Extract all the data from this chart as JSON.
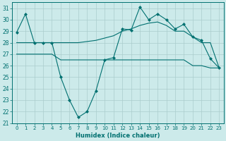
{
  "xlabel": "Humidex (Indice chaleur)",
  "bg_color": "#cceaea",
  "grid_color": "#aacccc",
  "line_color": "#007070",
  "xlim": [
    -0.5,
    23.5
  ],
  "ylim": [
    21.0,
    31.5
  ],
  "yticks": [
    21,
    22,
    23,
    24,
    25,
    26,
    27,
    28,
    29,
    30,
    31
  ],
  "xticks": [
    0,
    1,
    2,
    3,
    4,
    5,
    6,
    7,
    8,
    9,
    10,
    11,
    12,
    13,
    14,
    15,
    16,
    17,
    18,
    19,
    20,
    21,
    22,
    23
  ],
  "xtick_labels": [
    "0",
    "1",
    "2",
    "3",
    "4",
    "5",
    "6",
    "7",
    "8",
    "9",
    "10",
    "11",
    "12",
    "13",
    "14",
    "15",
    "16",
    "17",
    "18",
    "19",
    "20",
    "21",
    "22",
    "23"
  ],
  "series1": [
    28.9,
    30.5,
    28.0,
    28.0,
    28.0,
    25.0,
    23.0,
    21.5,
    22.0,
    23.8,
    26.5,
    26.7,
    29.2,
    29.1,
    31.1,
    30.0,
    30.5,
    30.0,
    29.2,
    29.6,
    28.5,
    28.2,
    26.6,
    25.8
  ],
  "series2": [
    27.0,
    27.0,
    27.0,
    27.0,
    27.0,
    26.5,
    26.5,
    26.5,
    26.5,
    26.5,
    26.5,
    26.5,
    26.5,
    26.5,
    26.5,
    26.5,
    26.5,
    26.5,
    26.5,
    26.5,
    26.0,
    26.0,
    25.8,
    25.8
  ],
  "series3": [
    28.0,
    28.0,
    28.0,
    28.0,
    28.0,
    28.0,
    28.0,
    28.0,
    28.1,
    28.2,
    28.4,
    28.6,
    29.0,
    29.2,
    29.5,
    29.7,
    29.8,
    29.5,
    29.0,
    29.0,
    28.5,
    28.0,
    28.0,
    25.8
  ]
}
